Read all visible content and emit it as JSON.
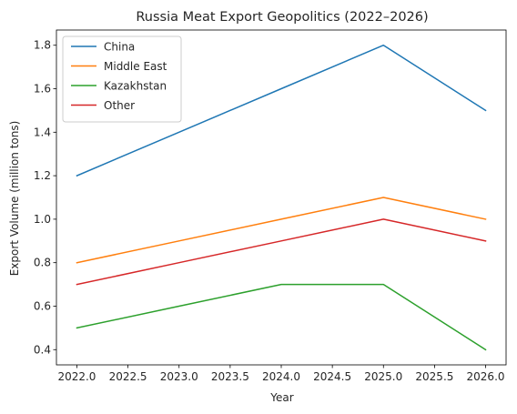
{
  "chart_data": {
    "type": "line",
    "title": "Russia Meat Export Geopolitics (2022–2026)",
    "xlabel": "Year",
    "ylabel": "Export Volume (million tons)",
    "x": [
      2022,
      2023,
      2024,
      2025,
      2026
    ],
    "xlim": [
      2021.8,
      2026.2
    ],
    "ylim": [
      0.33,
      1.87
    ],
    "xticks": [
      2022.0,
      2022.5,
      2023.0,
      2023.5,
      2024.0,
      2024.5,
      2025.0,
      2025.5,
      2026.0
    ],
    "xtick_labels": [
      "2022.0",
      "2022.5",
      "2023.0",
      "2023.5",
      "2024.0",
      "2024.5",
      "2025.0",
      "2025.5",
      "2026.0"
    ],
    "yticks": [
      0.4,
      0.6,
      0.8,
      1.0,
      1.2,
      1.4,
      1.6,
      1.8
    ],
    "ytick_labels": [
      "0.4",
      "0.6",
      "0.8",
      "1.0",
      "1.2",
      "1.4",
      "1.6",
      "1.8"
    ],
    "grid": false,
    "legend_position": "upper-left",
    "series": [
      {
        "name": "China",
        "color": "#1f77b4",
        "values": [
          1.2,
          1.4,
          1.6,
          1.8,
          1.5
        ]
      },
      {
        "name": "Middle East",
        "color": "#ff7f0e",
        "values": [
          0.8,
          0.9,
          1.0,
          1.1,
          1.0
        ]
      },
      {
        "name": "Kazakhstan",
        "color": "#2ca02c",
        "values": [
          0.5,
          0.6,
          0.7,
          0.7,
          0.4
        ]
      },
      {
        "name": "Other",
        "color": "#d62728",
        "values": [
          0.7,
          0.8,
          0.9,
          1.0,
          0.9
        ]
      }
    ]
  }
}
